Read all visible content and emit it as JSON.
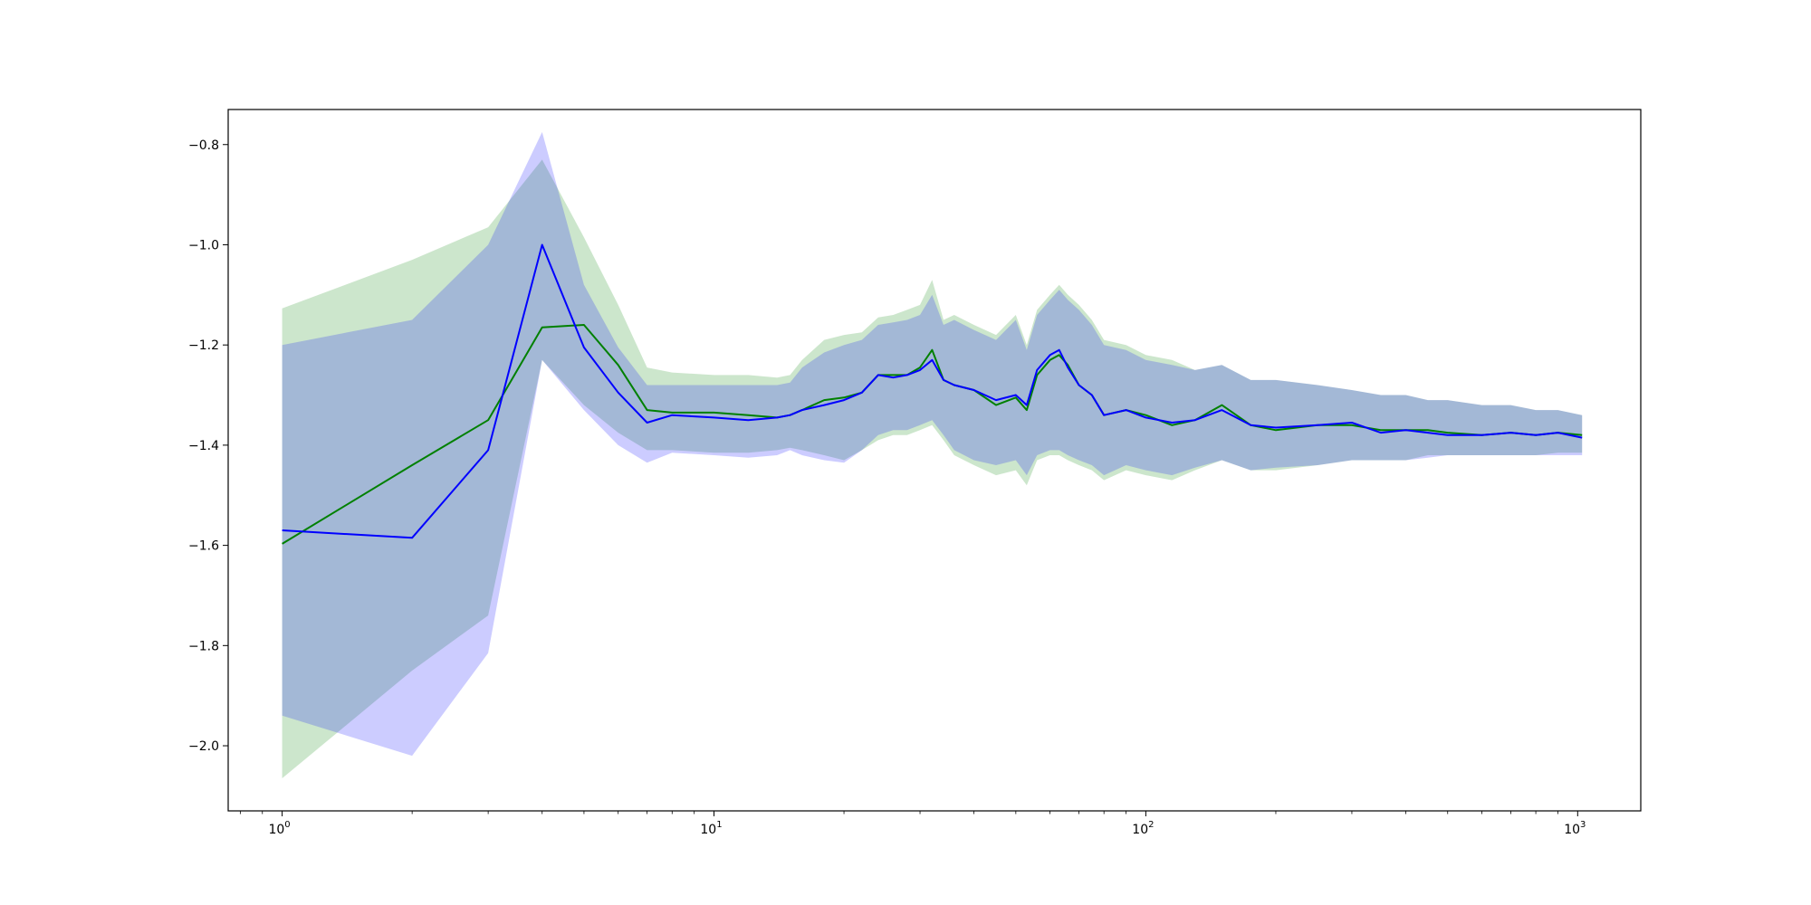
{
  "chart_data": {
    "type": "line",
    "title": "",
    "xlabel": "",
    "ylabel": "",
    "xscale": "log",
    "xlim": [
      0.75,
      1400
    ],
    "ylim": [
      -2.13,
      -0.73
    ],
    "grid": false,
    "x_ticks": [
      {
        "value": 1,
        "base": "10",
        "exp": "0"
      },
      {
        "value": 10,
        "base": "10",
        "exp": "1"
      },
      {
        "value": 100,
        "base": "10",
        "exp": "2"
      },
      {
        "value": 1000,
        "base": "10",
        "exp": "3"
      }
    ],
    "y_ticks": [
      {
        "value": -0.8,
        "label": "−0.8"
      },
      {
        "value": -1.0,
        "label": "−1.0"
      },
      {
        "value": -1.2,
        "label": "−1.2"
      },
      {
        "value": -1.4,
        "label": "−1.4"
      },
      {
        "value": -1.6,
        "label": "−1.6"
      },
      {
        "value": -1.8,
        "label": "−1.8"
      },
      {
        "value": -2.0,
        "label": "−2.0"
      }
    ],
    "series": [
      {
        "color": "#008000",
        "band_color": "#008000",
        "band_opacity": 0.2,
        "x": [
          1,
          2,
          3,
          4,
          5,
          6,
          7,
          8,
          10,
          12,
          14,
          15,
          16,
          18,
          20,
          22,
          24,
          26,
          28,
          30,
          32,
          34,
          36,
          40,
          45,
          50,
          53,
          56,
          60,
          63,
          66,
          70,
          75,
          80,
          90,
          100,
          115,
          130,
          150,
          175,
          200,
          250,
          300,
          350,
          400,
          450,
          500,
          600,
          700,
          800,
          900,
          1024
        ],
        "mean": [
          -1.597,
          -1.44,
          -1.35,
          -1.165,
          -1.16,
          -1.24,
          -1.33,
          -1.335,
          -1.335,
          -1.34,
          -1.345,
          -1.34,
          -1.33,
          -1.31,
          -1.305,
          -1.295,
          -1.26,
          -1.26,
          -1.26,
          -1.245,
          -1.21,
          -1.27,
          -1.28,
          -1.29,
          -1.32,
          -1.305,
          -1.33,
          -1.26,
          -1.23,
          -1.22,
          -1.24,
          -1.28,
          -1.3,
          -1.34,
          -1.33,
          -1.34,
          -1.36,
          -1.35,
          -1.32,
          -1.36,
          -1.37,
          -1.36,
          -1.36,
          -1.37,
          -1.37,
          -1.37,
          -1.375,
          -1.38,
          -1.375,
          -1.38,
          -1.375,
          -1.38
        ],
        "lower": [
          -2.065,
          -1.85,
          -1.74,
          -1.23,
          -1.32,
          -1.375,
          -1.41,
          -1.41,
          -1.415,
          -1.415,
          -1.41,
          -1.405,
          -1.41,
          -1.42,
          -1.43,
          -1.41,
          -1.39,
          -1.38,
          -1.38,
          -1.37,
          -1.36,
          -1.39,
          -1.42,
          -1.44,
          -1.46,
          -1.45,
          -1.48,
          -1.43,
          -1.42,
          -1.42,
          -1.43,
          -1.44,
          -1.45,
          -1.47,
          -1.45,
          -1.46,
          -1.47,
          -1.45,
          -1.43,
          -1.45,
          -1.45,
          -1.44,
          -1.43,
          -1.43,
          -1.43,
          -1.42,
          -1.42,
          -1.42,
          -1.42,
          -1.42,
          -1.415,
          -1.415
        ],
        "upper": [
          -1.127,
          -1.03,
          -0.965,
          -0.83,
          -0.985,
          -1.12,
          -1.245,
          -1.255,
          -1.26,
          -1.26,
          -1.265,
          -1.26,
          -1.23,
          -1.19,
          -1.18,
          -1.175,
          -1.145,
          -1.14,
          -1.13,
          -1.12,
          -1.07,
          -1.15,
          -1.14,
          -1.16,
          -1.18,
          -1.14,
          -1.2,
          -1.13,
          -1.1,
          -1.08,
          -1.1,
          -1.12,
          -1.15,
          -1.19,
          -1.2,
          -1.22,
          -1.23,
          -1.25,
          -1.24,
          -1.27,
          -1.27,
          -1.28,
          -1.29,
          -1.3,
          -1.3,
          -1.31,
          -1.31,
          -1.32,
          -1.32,
          -1.33,
          -1.33,
          -1.34
        ]
      },
      {
        "color": "#0000ff",
        "band_color": "#0000ff",
        "band_opacity": 0.2,
        "x": [
          1,
          2,
          3,
          4,
          5,
          6,
          7,
          8,
          10,
          12,
          14,
          15,
          16,
          18,
          20,
          22,
          24,
          26,
          28,
          30,
          32,
          34,
          36,
          40,
          45,
          50,
          53,
          56,
          60,
          63,
          66,
          70,
          75,
          80,
          90,
          100,
          115,
          130,
          150,
          175,
          200,
          250,
          300,
          350,
          400,
          450,
          500,
          600,
          700,
          800,
          900,
          1024
        ],
        "mean": [
          -1.57,
          -1.585,
          -1.41,
          -1.0,
          -1.205,
          -1.295,
          -1.355,
          -1.34,
          -1.345,
          -1.35,
          -1.345,
          -1.34,
          -1.33,
          -1.32,
          -1.31,
          -1.295,
          -1.26,
          -1.265,
          -1.26,
          -1.25,
          -1.23,
          -1.27,
          -1.28,
          -1.29,
          -1.31,
          -1.3,
          -1.32,
          -1.25,
          -1.22,
          -1.21,
          -1.245,
          -1.28,
          -1.3,
          -1.34,
          -1.33,
          -1.345,
          -1.355,
          -1.35,
          -1.33,
          -1.36,
          -1.365,
          -1.36,
          -1.355,
          -1.375,
          -1.37,
          -1.375,
          -1.38,
          -1.38,
          -1.375,
          -1.38,
          -1.375,
          -1.385
        ],
        "lower": [
          -1.94,
          -2.02,
          -1.815,
          -1.23,
          -1.33,
          -1.4,
          -1.435,
          -1.415,
          -1.42,
          -1.425,
          -1.42,
          -1.41,
          -1.42,
          -1.43,
          -1.435,
          -1.41,
          -1.38,
          -1.37,
          -1.37,
          -1.36,
          -1.35,
          -1.38,
          -1.41,
          -1.43,
          -1.44,
          -1.43,
          -1.46,
          -1.42,
          -1.41,
          -1.41,
          -1.42,
          -1.43,
          -1.44,
          -1.46,
          -1.44,
          -1.45,
          -1.46,
          -1.445,
          -1.43,
          -1.45,
          -1.445,
          -1.44,
          -1.43,
          -1.43,
          -1.43,
          -1.425,
          -1.42,
          -1.42,
          -1.42,
          -1.42,
          -1.42,
          -1.42
        ],
        "upper": [
          -1.2,
          -1.15,
          -1.0,
          -0.775,
          -1.08,
          -1.205,
          -1.28,
          -1.28,
          -1.28,
          -1.28,
          -1.28,
          -1.275,
          -1.245,
          -1.215,
          -1.2,
          -1.19,
          -1.16,
          -1.155,
          -1.15,
          -1.14,
          -1.1,
          -1.16,
          -1.15,
          -1.17,
          -1.19,
          -1.15,
          -1.21,
          -1.14,
          -1.11,
          -1.09,
          -1.11,
          -1.13,
          -1.16,
          -1.2,
          -1.21,
          -1.23,
          -1.24,
          -1.25,
          -1.24,
          -1.27,
          -1.27,
          -1.28,
          -1.29,
          -1.3,
          -1.3,
          -1.31,
          -1.31,
          -1.32,
          -1.32,
          -1.33,
          -1.33,
          -1.34
        ]
      }
    ]
  }
}
